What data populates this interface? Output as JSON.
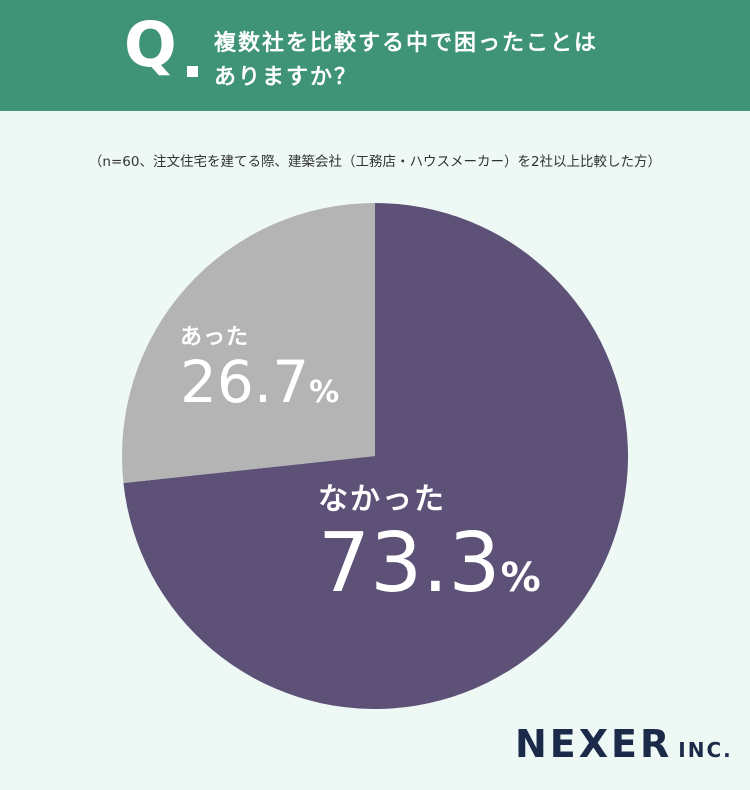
{
  "header": {
    "q_mark": "Q",
    "question_line1": "複数社を比較する中で困ったことは",
    "question_line2": "ありますか？"
  },
  "subnote": "（n=60、注文住宅を建てる際、建築会社（工務店・ハウスメーカー）を2社以上比較した方）",
  "chart_data": {
    "type": "pie",
    "slices": [
      {
        "label": "なかった",
        "value": 73.3,
        "display": "73.3",
        "unit": "%",
        "color": "#5d5177"
      },
      {
        "label": "あった",
        "value": 26.7,
        "display": "26.7",
        "unit": "%",
        "color": "#b4b4b4"
      }
    ],
    "start": "12 o'clock",
    "direction": "clockwise"
  },
  "logo": {
    "main": "NEXER",
    "sub": "INC."
  }
}
